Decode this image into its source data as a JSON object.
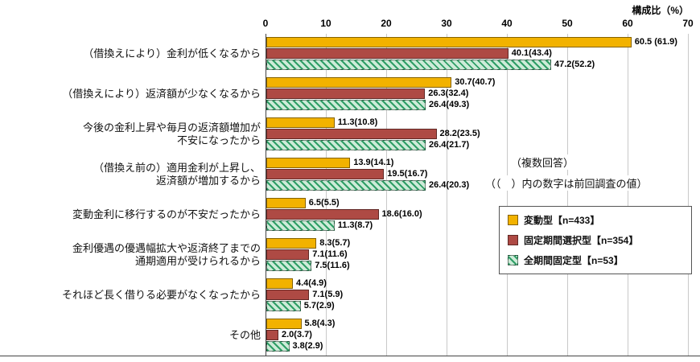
{
  "chart_data": {
    "type": "bar",
    "orientation": "horizontal",
    "title": "",
    "xlabel": "構成比（%）",
    "ylabel": "",
    "xlim": [
      0,
      70
    ],
    "xticks": [
      0,
      10,
      20,
      30,
      40,
      50,
      60,
      70
    ],
    "grid": true,
    "legend_position": "right",
    "annotations": [
      "（複数回答）",
      "（（　）内の数字は前回調査の値）"
    ],
    "categories": [
      "（借換えにより）金利が低くなるから",
      "（借換えにより）返済額が少なくなるから",
      "今後の金利上昇や毎月の返済額増加が\n不安になったから",
      "（借換え前の）適用金利が上昇し、\n返済額が増加するから",
      "変動金利に移行するのが不安だったから",
      "金利優遇の優遇幅拡大や返済終了までの\n通期適用が受けられるから",
      "それほど長く借りる必要がなくなったから",
      "その他"
    ],
    "series": [
      {
        "name": "変動型【n=433】",
        "color": "#F2B200",
        "hatch_color": "",
        "values": [
          60.5,
          30.7,
          11.3,
          13.9,
          6.5,
          8.3,
          4.4,
          5.8
        ],
        "labels": [
          "60.5 (61.9)",
          "30.7(40.7)",
          "11.3(10.8)",
          "13.9(14.1)",
          "6.5(5.5)",
          "8.3(5.7)",
          "4.4(4.9)",
          "5.8(4.3)"
        ]
      },
      {
        "name": "固定期間選択型【n=354】",
        "color": "#AE4A44",
        "hatch_color": "",
        "values": [
          40.1,
          26.3,
          28.2,
          19.5,
          18.6,
          7.1,
          7.1,
          2.0
        ],
        "labels": [
          "40.1(43.4)",
          "26.3(32.4)",
          "28.2(23.5)",
          "19.5(16.7)",
          "18.6(16.0)",
          "7.1(11.6)",
          "7.1(5.9)",
          "2.0(3.7)"
        ]
      },
      {
        "name": "全期間固定型【n=53】",
        "color": "#2F9E66",
        "hatch_color": "#CDEBD8",
        "values": [
          47.2,
          26.4,
          26.4,
          26.4,
          11.3,
          7.5,
          5.7,
          3.8
        ],
        "labels": [
          "47.2(52.2)",
          "26.4(49.3)",
          "26.4(21.7)",
          "26.4(20.3)",
          "11.3(8.7)",
          "7.5(11.6)",
          "5.7(2.9)",
          "3.8(2.9)"
        ]
      }
    ]
  }
}
